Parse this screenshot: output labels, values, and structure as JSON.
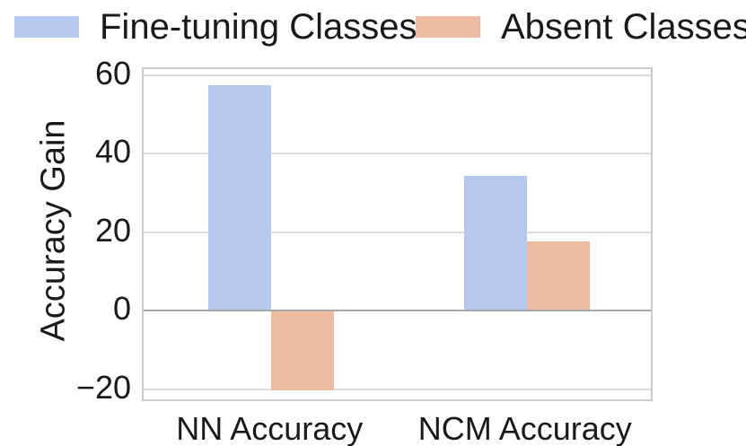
{
  "chart_data": {
    "type": "bar",
    "title": "",
    "categories": [
      "NN Accuracy",
      "NCM Accuracy"
    ],
    "series": [
      {
        "name": "Fine-tuning Classes",
        "color": "#b5c8ed",
        "values": [
          57.4,
          34.3
        ]
      },
      {
        "name": "Absent Classes",
        "color": "#eebca2",
        "values": [
          -20.2,
          17.7
        ]
      }
    ],
    "xlabel": "",
    "ylabel": "Accuracy Gain",
    "yticks": [
      -20,
      0,
      20,
      40,
      60
    ],
    "ylim": [
      -23.5,
      61.5
    ],
    "grid": true,
    "zero_line": true,
    "legend_position": "top",
    "colors": {
      "plot_border": "#cbcbcb",
      "gridline": "#dcdcdc",
      "zero_line": "#a8a8a8",
      "text": "#1a1a1a",
      "background": "#ffffff"
    }
  }
}
